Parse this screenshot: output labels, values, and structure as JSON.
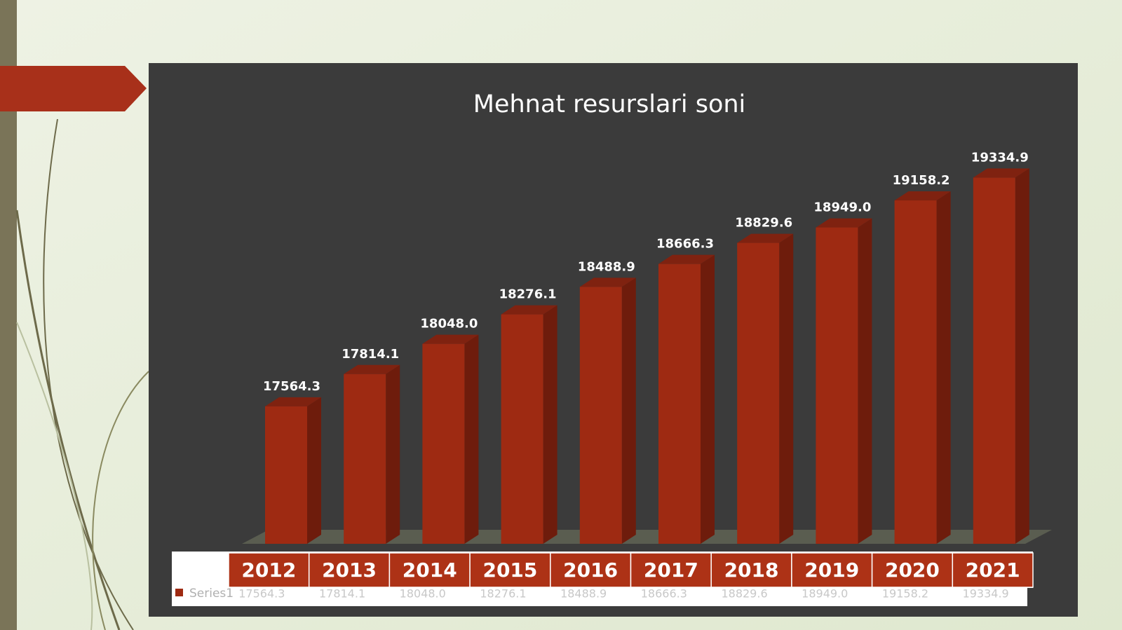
{
  "chart_data": {
    "type": "bar3d",
    "title": "Mehnat resurslari soni",
    "categories": [
      "2012",
      "2013",
      "2014",
      "2015",
      "2016",
      "2017",
      "2018",
      "2019",
      "2020",
      "2021"
    ],
    "series": [
      {
        "name": "Series1",
        "color": "#9e2a12",
        "values": [
          17564.3,
          17814.1,
          18048.0,
          18276.1,
          18488.9,
          18666.3,
          18829.6,
          18949.0,
          19158.2,
          19334.9
        ],
        "value_labels": [
          "17564.3",
          "17814.1",
          "18048.0",
          "18276.1",
          "18488.9",
          "18666.3",
          "18829.6",
          "18949.0",
          "19158.2",
          "19334.9"
        ]
      }
    ],
    "ylim": [
      16500,
      19500
    ]
  }
}
